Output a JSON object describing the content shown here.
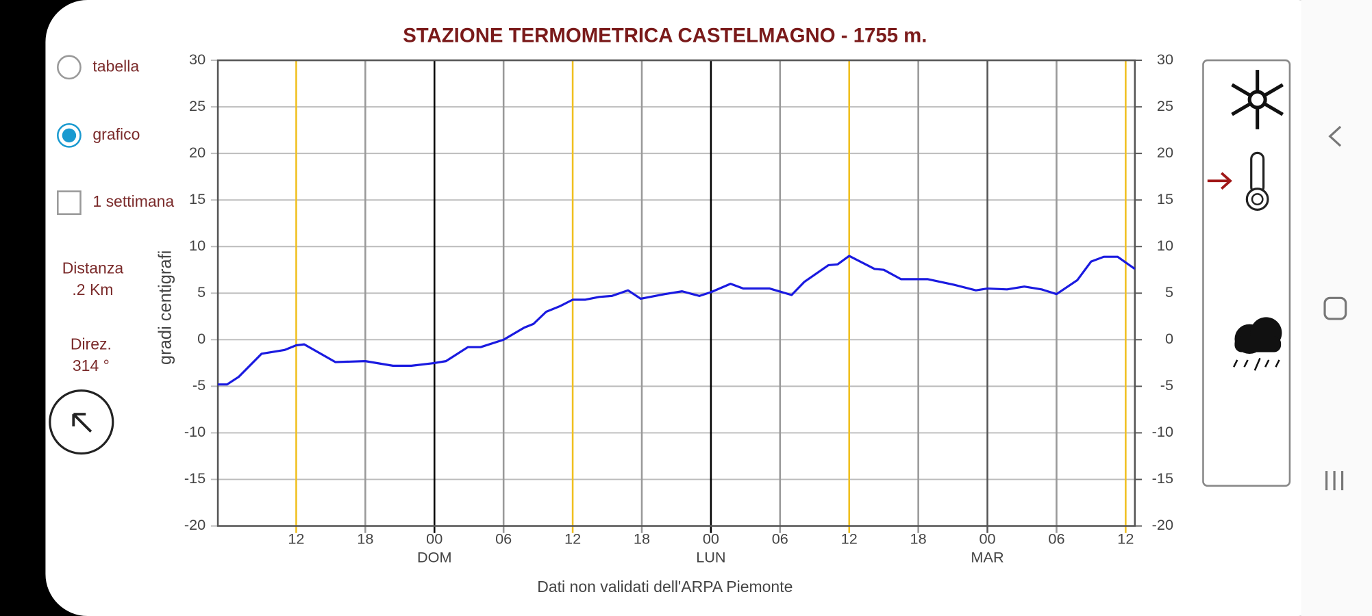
{
  "chart_data": {
    "type": "line",
    "title": "STAZIONE TERMOMETRICA CASTELMAGNO - 1755 m.",
    "y_label": "gradi centigrafi",
    "footer": "Dati non validati dell'ARPA Piemonte",
    "color": "#1a1ae0",
    "x": [
      -18.8,
      -18,
      -17,
      -15,
      -13,
      -12,
      -11.3,
      -8.6,
      -6,
      -3.6,
      -2,
      0,
      1,
      2.9,
      4,
      6,
      7.8,
      8.6,
      9.7,
      10.9,
      12,
      13.1,
      14.3,
      15.4,
      16.8,
      17.9,
      20,
      21.5,
      23,
      24,
      25.7,
      26.8,
      29.1,
      31,
      32.1,
      34.2,
      35,
      36,
      38.2,
      39,
      40.5,
      42.8,
      45.1,
      47,
      48,
      49.7,
      51.2,
      52.7,
      54,
      55.8,
      57,
      58.1,
      59.3,
      60.8
    ],
    "values": [
      -4.8,
      -4.8,
      -4.0,
      -1.5,
      -1.1,
      -0.6,
      -0.5,
      -2.4,
      -2.3,
      -2.8,
      -2.8,
      -2.5,
      -2.3,
      -0.8,
      -0.8,
      0,
      1.3,
      1.7,
      3.0,
      3.6,
      4.3,
      4.3,
      4.6,
      4.7,
      5.3,
      4.4,
      4.9,
      5.2,
      4.7,
      5.1,
      6.0,
      5.5,
      5.5,
      4.8,
      6.2,
      8.0,
      8.1,
      9.0,
      7.6,
      7.5,
      6.5,
      6.5,
      5.9,
      5.3,
      5.5,
      5.4,
      5.7,
      5.4,
      4.9,
      6.4,
      8.4,
      8.9,
      8.9,
      7.6
    ],
    "xlim": [
      -18.8,
      60.8
    ],
    "xticks": [
      {
        "value": -12,
        "label": "12"
      },
      {
        "value": -6,
        "label": "18"
      },
      {
        "value": 0,
        "label": "00"
      },
      {
        "value": 6,
        "label": "06"
      },
      {
        "value": 12,
        "label": "12"
      },
      {
        "value": 18,
        "label": "18"
      },
      {
        "value": 24,
        "label": "00"
      },
      {
        "value": 30,
        "label": "06"
      },
      {
        "value": 36,
        "label": "12"
      },
      {
        "value": 42,
        "label": "18"
      },
      {
        "value": 48,
        "label": "00"
      },
      {
        "value": 54,
        "label": "06"
      },
      {
        "value": 60,
        "label": "12"
      }
    ],
    "grid_colors": [
      "#f0c020",
      "#999",
      "#000",
      "#999",
      "#f0c020",
      "#999",
      "#000",
      "#999",
      "#f0c020",
      "#999",
      "#555",
      "#999",
      "#f0c020"
    ],
    "day_labels": [
      {
        "value": 0,
        "label": "DOM"
      },
      {
        "value": 24,
        "label": "LUN"
      },
      {
        "value": 48,
        "label": "MAR"
      }
    ],
    "ylim": [
      -20,
      30
    ],
    "yticks": [
      -20,
      -15,
      -10,
      -5,
      0,
      5,
      10,
      15,
      20,
      25,
      30
    ],
    "y2lim": [
      -20,
      30
    ],
    "y2ticks": [
      -20,
      -15,
      -10,
      -5,
      0,
      5,
      10,
      15,
      20,
      25,
      30
    ],
    "grid": true
  },
  "ui": {
    "options": [
      {
        "label": "tabella",
        "selected": false
      },
      {
        "label": "grafico",
        "selected": true
      }
    ],
    "week_checkbox": {
      "label": "1 settimana",
      "checked": false
    },
    "distance": [
      "Distanza",
      ".2 Km"
    ],
    "direction": [
      "Direz.",
      "314 °"
    ]
  }
}
